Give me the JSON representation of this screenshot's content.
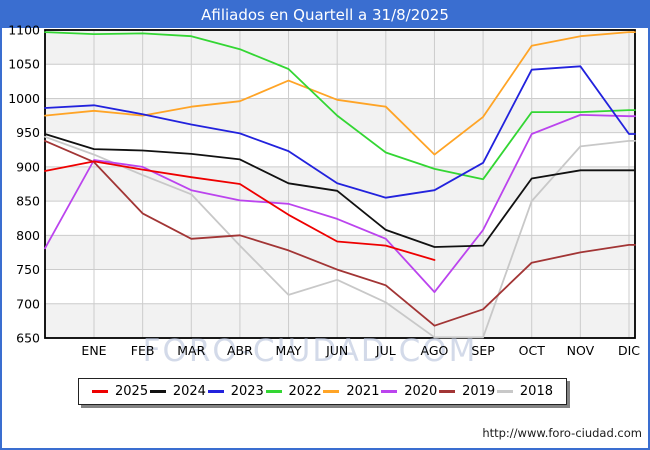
{
  "title": "Afiliados en Quartell a 31/8/2025",
  "watermark": "FORO-CIUDAD.COM",
  "footer": {
    "url": "http://www.foro-ciudad.com"
  },
  "chart_data": {
    "type": "line",
    "title": "Afiliados en Quartell a 31/8/2025",
    "x_labels": [
      "",
      "ENE",
      "FEB",
      "MAR",
      "ABR",
      "MAY",
      "JUN",
      "JUL",
      "AGO",
      "SEP",
      "OCT",
      "NOV",
      "DIC"
    ],
    "y_axis": {
      "min": 650,
      "max": 1100,
      "step": 50
    },
    "grid": true,
    "legend_position": "bottom",
    "series": [
      {
        "name": "2025",
        "color": "#ee0000",
        "values": [
          894,
          908,
          896,
          885,
          875,
          830,
          791,
          785,
          764
        ]
      },
      {
        "name": "2024",
        "color": "#111111",
        "values": [
          948,
          926,
          924,
          919,
          911,
          876,
          865,
          808,
          783,
          785,
          883,
          895,
          895
        ]
      },
      {
        "name": "2023",
        "color": "#2222dd",
        "values": [
          986,
          990,
          977,
          962,
          949,
          923,
          876,
          855,
          866,
          906,
          1042,
          1047,
          948
        ]
      },
      {
        "name": "2022",
        "color": "#33d633",
        "values": [
          1097,
          1094,
          1095,
          1091,
          1072,
          1043,
          975,
          921,
          897,
          882,
          980,
          980,
          983
        ]
      },
      {
        "name": "2021",
        "color": "#ffa426",
        "values": [
          975,
          982,
          975,
          988,
          996,
          1026,
          998,
          988,
          918,
          973,
          1077,
          1091,
          1097
        ]
      },
      {
        "name": "2020",
        "color": "#bb44ee",
        "values": [
          781,
          910,
          900,
          866,
          851,
          846,
          824,
          795,
          717,
          808,
          948,
          976,
          974
        ]
      },
      {
        "name": "2019",
        "color": "#a23535",
        "values": [
          938,
          907,
          832,
          795,
          800,
          778,
          750,
          727,
          668,
          692,
          760,
          775,
          786
        ]
      },
      {
        "name": "2018",
        "color": "#c8c8c8",
        "values": [
          944,
          918,
          888,
          860,
          785,
          713,
          735,
          702,
          651,
          651,
          850,
          930,
          938
        ]
      }
    ]
  }
}
